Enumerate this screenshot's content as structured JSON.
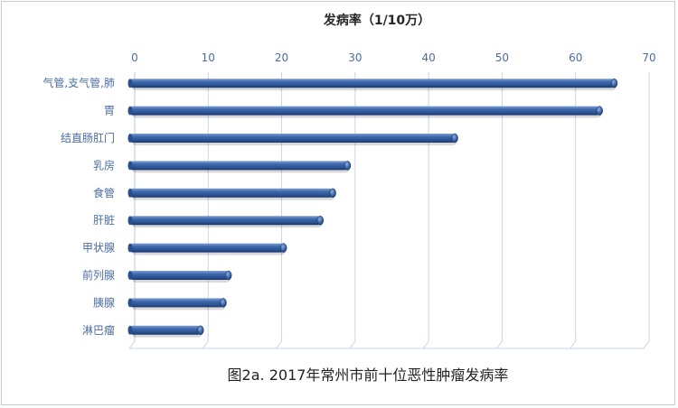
{
  "chart_data": {
    "type": "bar",
    "orientation": "horizontal",
    "xlabel": "发病率（1/10万）",
    "caption": "图2a. 2017年常州市前十位恶性肿瘤发病率",
    "categories": [
      "气管,支气管,肺",
      "胃",
      "结直肠肛门",
      "乳房",
      "食管",
      "肝脏",
      "甲状腺",
      "前列腺",
      "胰腺",
      "淋巴瘤"
    ],
    "values": [
      65.5,
      63.5,
      43.8,
      29.2,
      27.2,
      25.5,
      20.5,
      13.0,
      12.3,
      9.2
    ],
    "xlim": [
      0,
      70
    ],
    "xticks": [
      0,
      10,
      20,
      30,
      40,
      50,
      60,
      70
    ],
    "x_axis_position": "top",
    "grid": true,
    "colors": {
      "bar": "#2f5a9e",
      "bar_dark": "#1b3a70",
      "bar_light": "#6f95cf",
      "grid": "#c9d5e8"
    }
  }
}
